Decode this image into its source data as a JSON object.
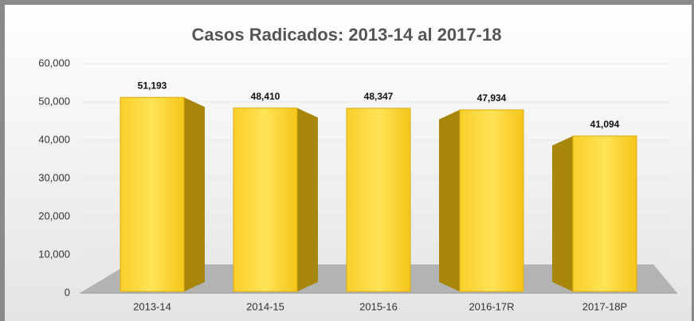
{
  "chart_data": {
    "type": "bar",
    "title": "Casos Radicados: 2013-14 al 2017-18",
    "categories": [
      "2013-14",
      "2014-15",
      "2015-16",
      "2016-17R",
      "2017-18P"
    ],
    "values": [
      51193,
      48410,
      48347,
      47934,
      41094
    ],
    "value_labels": [
      "51,193",
      "48,410",
      "48,347",
      "47,934",
      "41,094"
    ],
    "color": "#f5c518",
    "ylim": [
      0,
      60000
    ],
    "yticks": [
      0,
      {
        "value": 10000,
        "label": "10,000"
      },
      {
        "value": 20000,
        "label": "20,000"
      },
      {
        "value": 30000,
        "label": "30,000"
      },
      {
        "value": 40000,
        "label": "40,000"
      },
      {
        "value": 50000,
        "label": "50,000"
      },
      {
        "value": 60000,
        "label": "60,000"
      }
    ],
    "grid": true
  }
}
